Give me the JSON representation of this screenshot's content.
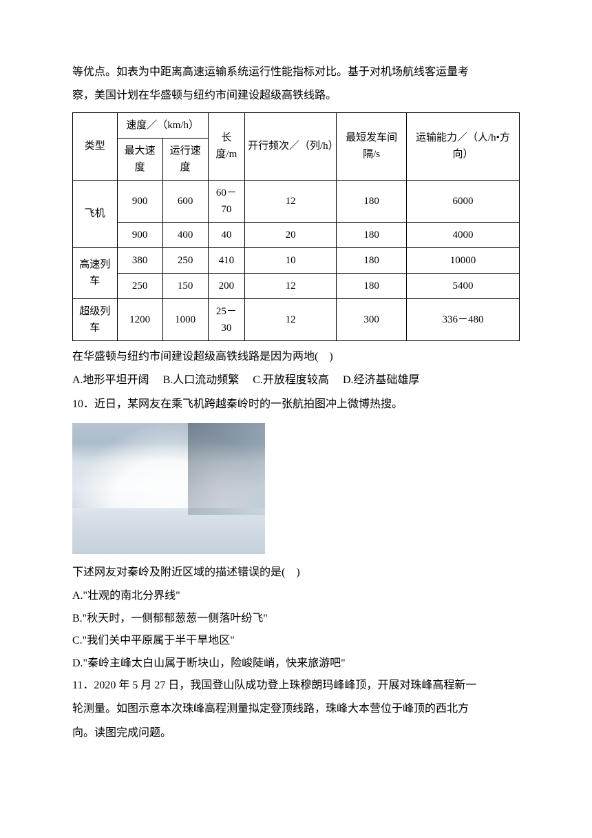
{
  "intro": {
    "line1": "等优点。如表为中距离高速运输系统运行性能指标对比。基于对机场航线客运量考",
    "line2": "察，美国计划在华盛顿与纽约市间建设超级高铁线路。"
  },
  "table": {
    "headers": {
      "type": "类型",
      "speed": "速度／（km/h）",
      "max_speed": "最大速度",
      "run_speed": "运行速度",
      "length": "长度/m",
      "freq": "开行频次／（列/h）",
      "interval": "最短发车间隔/s",
      "capacity": "运输能力／（人/h•方向）"
    },
    "rows": [
      {
        "type": "飞机",
        "max": "900",
        "run": "600",
        "len": "60－70",
        "freq": "12",
        "intv": "180",
        "cap": "6000"
      },
      {
        "type": "",
        "max": "900",
        "run": "400",
        "len": "40",
        "freq": "20",
        "intv": "180",
        "cap": "4000"
      },
      {
        "type": "高速列车",
        "max": "380",
        "run": "250",
        "len": "410",
        "freq": "10",
        "intv": "180",
        "cap": "10000"
      },
      {
        "type": "",
        "max": "250",
        "run": "150",
        "len": "200",
        "freq": "12",
        "intv": "180",
        "cap": "5400"
      },
      {
        "type": "超级列车",
        "max": "1200",
        "run": "1000",
        "len": "25－30",
        "freq": "12",
        "intv": "300",
        "cap": "336－480"
      }
    ]
  },
  "q9": {
    "stem": "在华盛顿与纽约市间建设超级高铁线路是因为两地(　)",
    "opts": {
      "a": "A.地形平坦开阔",
      "b": "B.人口流动频繁",
      "c": "C.开放程度较高",
      "d": "D.经济基础雄厚"
    }
  },
  "q10": {
    "stem": "10．近日，某网友在乘飞机跨越秦岭时的一张航拍图冲上微博热搜。",
    "sub": "下述网友对秦岭及附近区域的描述错误的是(　)",
    "opts": {
      "a": "A.\"壮观的南北分界线\"",
      "b": "B.\"秋天时，一侧郁郁葱葱一侧落叶纷飞\"",
      "c": "C.\"我们关中平原属于半干旱地区\"",
      "d": "D.\"秦岭主峰太白山属于断块山，险峻陡峭，快来旅游吧\""
    }
  },
  "q11": {
    "line1": "11．2020 年 5 月 27 日，我国登山队成功登上珠穆朗玛峰峰顶，开展对珠峰高程新一",
    "line2": "轮测量。如图示意本次珠峰高程测量拟定登顶线路，珠峰大本营位于峰顶的西北方",
    "line3": "向。读图完成问题。"
  }
}
